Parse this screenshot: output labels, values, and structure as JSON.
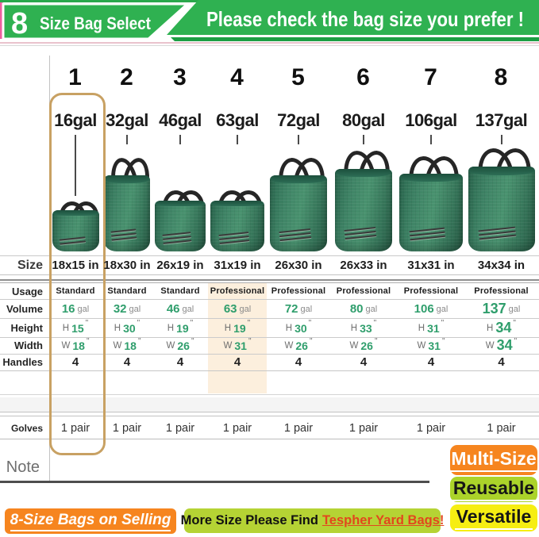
{
  "header": {
    "left_badge_number": "8",
    "left_badge_text": "Size Bag Select",
    "right_banner_text": "Please check the bag size you prefer !"
  },
  "table": {
    "row_labels": {
      "size": "Size",
      "usage": "Usage",
      "volume": "Volume",
      "height": "Height",
      "width": "Width",
      "handles": "Handles",
      "gloves": "Golves",
      "note": "Note"
    },
    "height_prefix": "H",
    "width_prefix": "W",
    "inch_mark": "\"",
    "volume_unit": "gal"
  },
  "columns": [
    {
      "num": "1",
      "volume_label": "16gal",
      "size": "18x15 in",
      "usage": "Standard",
      "volume": "16",
      "height": "15",
      "width": "18",
      "handles": "4",
      "gloves": "1 pair",
      "bag_w_in": 18,
      "bag_h_in": 15,
      "highlighted": true
    },
    {
      "num": "2",
      "volume_label": "32gal",
      "size": "18x30 in",
      "usage": "Standard",
      "volume": "32",
      "height": "30",
      "width": "18",
      "handles": "4",
      "gloves": "1 pair",
      "bag_w_in": 18,
      "bag_h_in": 30,
      "highlighted": false
    },
    {
      "num": "3",
      "volume_label": "46gal",
      "size": "26x19 in",
      "usage": "Standard",
      "volume": "46",
      "height": "19",
      "width": "26",
      "handles": "4",
      "gloves": "1 pair",
      "bag_w_in": 26,
      "bag_h_in": 19,
      "highlighted": false
    },
    {
      "num": "4",
      "volume_label": "63gal",
      "size": "31x19 in",
      "usage": "Professional",
      "volume": "63",
      "height": "19",
      "width": "31",
      "handles": "4",
      "gloves": "1 pair",
      "bag_w_in": 31,
      "bag_h_in": 19,
      "highlighted": true
    },
    {
      "num": "5",
      "volume_label": "72gal",
      "size": "26x30 in",
      "usage": "Professional",
      "volume": "72",
      "height": "30",
      "width": "26",
      "handles": "4",
      "gloves": "1 pair",
      "bag_w_in": 26,
      "bag_h_in": 30,
      "highlighted": false
    },
    {
      "num": "6",
      "volume_label": "80gal",
      "size": "26x33 in",
      "usage": "Professional",
      "volume": "80",
      "height": "33",
      "width": "26",
      "handles": "4",
      "gloves": "1 pair",
      "bag_w_in": 26,
      "bag_h_in": 33,
      "highlighted": false
    },
    {
      "num": "7",
      "volume_label": "106gal",
      "size": "31x31 in",
      "usage": "Professional",
      "volume": "106",
      "height": "31",
      "width": "31",
      "handles": "4",
      "gloves": "1 pair",
      "bag_w_in": 31,
      "bag_h_in": 31,
      "highlighted": false
    },
    {
      "num": "8",
      "volume_label": "137gal",
      "size": "34x34 in",
      "usage": "Professional",
      "volume": "137",
      "height": "34",
      "width": "34",
      "handles": "4",
      "gloves": "1 pair",
      "bag_w_in": 34,
      "bag_h_in": 34,
      "highlighted": false
    }
  ],
  "footer": {
    "selling_banner": "8-Size Bags on Selling",
    "more_banner_prefix": "More Size Please Find",
    "more_banner_link": "Tespher Yard Bags!",
    "badges": [
      {
        "label": "Multi-Size",
        "bg": "#f6851f",
        "fg": "#ffffff"
      },
      {
        "label": "Reusable",
        "bg": "#abd32a",
        "fg": "#161616"
      },
      {
        "label": "Versatile",
        "bg": "#f6ee12",
        "fg": "#161616"
      }
    ]
  },
  "colors": {
    "banner_green": "#2fb151",
    "banner_green_dark": "#1d9e44",
    "top_strip_green": "#2aa84c",
    "pink_edge": "#ee5f9f",
    "pink_line": "#eac3cd",
    "highlight_border": "#c8a163",
    "peach": "#fcefdd",
    "value_green": "#2f9e6c",
    "orange": "#f6851f",
    "lime": "#b5d334",
    "yellow": "#f6ee12",
    "link_red": "#e2471d",
    "bag_teal": "#3f8466"
  }
}
